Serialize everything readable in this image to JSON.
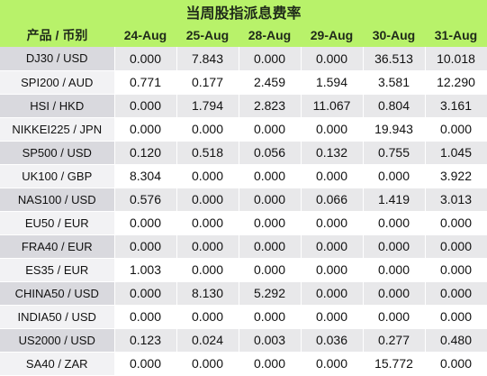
{
  "title": "当周股指派息费率",
  "columns": [
    "产品 / 币别",
    "24-Aug",
    "25-Aug",
    "28-Aug",
    "29-Aug",
    "30-Aug",
    "31-Aug"
  ],
  "rows": [
    {
      "name": "DJ30 / USD",
      "values": [
        "0.000",
        "7.843",
        "0.000",
        "0.000",
        "36.513",
        "10.018"
      ]
    },
    {
      "name": "SPI200 / AUD",
      "values": [
        "0.771",
        "0.177",
        "2.459",
        "1.594",
        "3.581",
        "12.290"
      ]
    },
    {
      "name": "HSI / HKD",
      "values": [
        "0.000",
        "1.794",
        "2.823",
        "11.067",
        "0.804",
        "3.161"
      ]
    },
    {
      "name": "NIKKEI225 / JPN",
      "values": [
        "0.000",
        "0.000",
        "0.000",
        "0.000",
        "19.943",
        "0.000"
      ]
    },
    {
      "name": "SP500 / USD",
      "values": [
        "0.120",
        "0.518",
        "0.056",
        "0.132",
        "0.755",
        "1.045"
      ]
    },
    {
      "name": "UK100 / GBP",
      "values": [
        "8.304",
        "0.000",
        "0.000",
        "0.000",
        "0.000",
        "3.922"
      ]
    },
    {
      "name": "NAS100 / USD",
      "values": [
        "0.576",
        "0.000",
        "0.000",
        "0.066",
        "1.419",
        "3.013"
      ]
    },
    {
      "name": "EU50 / EUR",
      "values": [
        "0.000",
        "0.000",
        "0.000",
        "0.000",
        "0.000",
        "0.000"
      ]
    },
    {
      "name": "FRA40 / EUR",
      "values": [
        "0.000",
        "0.000",
        "0.000",
        "0.000",
        "0.000",
        "0.000"
      ]
    },
    {
      "name": "ES35 / EUR",
      "values": [
        "1.003",
        "0.000",
        "0.000",
        "0.000",
        "0.000",
        "0.000"
      ]
    },
    {
      "name": "CHINA50 / USD",
      "values": [
        "0.000",
        "8.130",
        "5.292",
        "0.000",
        "0.000",
        "0.000"
      ]
    },
    {
      "name": "INDIA50 / USD",
      "values": [
        "0.000",
        "0.000",
        "0.000",
        "0.000",
        "0.000",
        "0.000"
      ]
    },
    {
      "name": "US2000 / USD",
      "values": [
        "0.123",
        "0.024",
        "0.003",
        "0.036",
        "0.277",
        "0.480"
      ]
    },
    {
      "name": "SA40 / ZAR",
      "values": [
        "0.000",
        "0.000",
        "0.000",
        "0.000",
        "15.772",
        "0.000"
      ]
    }
  ]
}
